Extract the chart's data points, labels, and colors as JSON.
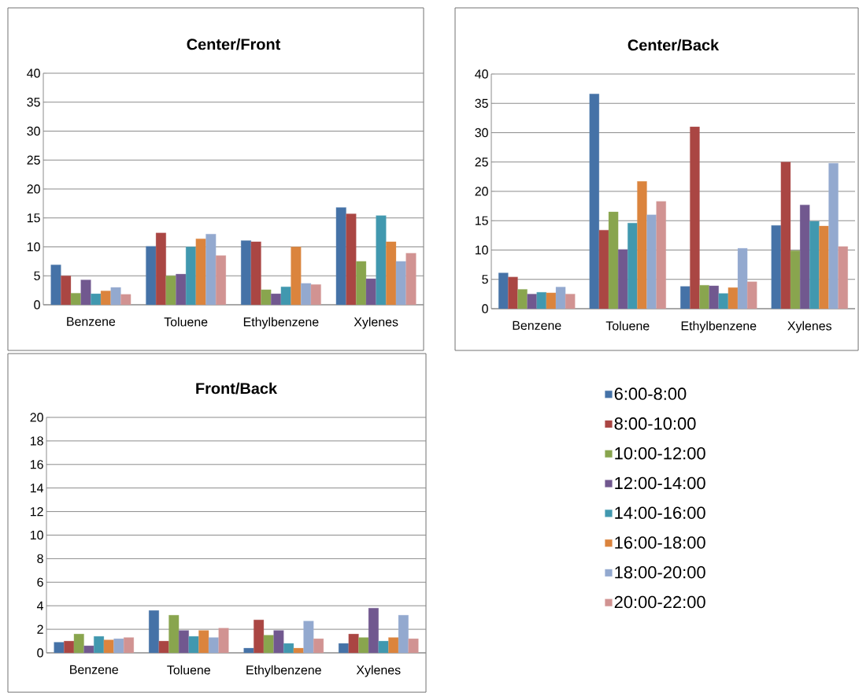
{
  "chart_data": [
    {
      "type": "bar",
      "title": "Center/Front",
      "categories": [
        "Benzene",
        "Toluene",
        "Ethylbenzene",
        "Xylenes"
      ],
      "ylim": [
        0,
        40
      ],
      "yticks": [
        0,
        5,
        10,
        15,
        20,
        25,
        30,
        35,
        40
      ],
      "grid": "y",
      "series": [
        {
          "color": "#4572a7",
          "values": [
            6.9,
            10.1,
            11.1,
            16.8
          ]
        },
        {
          "color": "#aa4643",
          "values": [
            5.0,
            12.4,
            10.9,
            15.7
          ]
        },
        {
          "color": "#89a54e",
          "values": [
            2.0,
            5.0,
            2.6,
            7.5
          ]
        },
        {
          "color": "#71588f",
          "values": [
            4.3,
            5.3,
            1.9,
            4.5
          ]
        },
        {
          "color": "#4198af",
          "values": [
            1.9,
            10.0,
            3.1,
            15.4
          ]
        },
        {
          "color": "#db843d",
          "values": [
            2.4,
            11.4,
            10.0,
            10.9
          ]
        },
        {
          "color": "#93a9cf",
          "values": [
            3.0,
            12.2,
            3.7,
            7.5
          ]
        },
        {
          "color": "#d19392",
          "values": [
            1.8,
            8.5,
            3.5,
            8.9
          ]
        }
      ]
    },
    {
      "type": "bar",
      "title": "Center/Back",
      "categories": [
        "Benzene",
        "Toluene",
        "Ethylbenzene",
        "Xylenes"
      ],
      "ylim": [
        0,
        40
      ],
      "yticks": [
        0,
        5,
        10,
        15,
        20,
        25,
        30,
        35,
        40
      ],
      "grid": "y",
      "series": [
        {
          "color": "#4572a7",
          "values": [
            6.1,
            36.6,
            3.8,
            14.2
          ]
        },
        {
          "color": "#aa4643",
          "values": [
            5.4,
            13.4,
            31.0,
            25.0
          ]
        },
        {
          "color": "#89a54e",
          "values": [
            3.3,
            16.5,
            4.0,
            9.9
          ]
        },
        {
          "color": "#71588f",
          "values": [
            2.5,
            10.1,
            3.9,
            17.7
          ]
        },
        {
          "color": "#4198af",
          "values": [
            2.8,
            14.6,
            2.6,
            14.9
          ]
        },
        {
          "color": "#db843d",
          "values": [
            2.7,
            21.7,
            3.6,
            14.1
          ]
        },
        {
          "color": "#93a9cf",
          "values": [
            3.7,
            16.0,
            10.3,
            24.8
          ]
        },
        {
          "color": "#d19392",
          "values": [
            2.5,
            18.3,
            4.6,
            10.6
          ]
        }
      ]
    },
    {
      "type": "bar",
      "title": "Front/Back",
      "categories": [
        "Benzene",
        "Toluene",
        "Ethylbenzene",
        "Xylenes"
      ],
      "ylim": [
        0,
        20
      ],
      "yticks": [
        0,
        2,
        4,
        6,
        8,
        10,
        12,
        14,
        16,
        18,
        20
      ],
      "grid": "y",
      "legend": "right",
      "series": [
        {
          "name": "6:00-8:00",
          "color": "#4572a7",
          "values": [
            0.9,
            3.6,
            0.4,
            0.8
          ]
        },
        {
          "name": "8:00-10:00",
          "color": "#aa4643",
          "values": [
            1.0,
            1.0,
            2.8,
            1.6
          ]
        },
        {
          "name": "10:00-12:00",
          "color": "#89a54e",
          "values": [
            1.6,
            3.2,
            1.5,
            1.3
          ]
        },
        {
          "name": "12:00-14:00",
          "color": "#71588f",
          "values": [
            0.6,
            1.9,
            1.9,
            3.8
          ]
        },
        {
          "name": "14:00-16:00",
          "color": "#4198af",
          "values": [
            1.4,
            1.4,
            0.8,
            1.0
          ]
        },
        {
          "name": "16:00-18:00",
          "color": "#db843d",
          "values": [
            1.1,
            1.9,
            0.4,
            1.3
          ]
        },
        {
          "name": "18:00-20:00",
          "color": "#93a9cf",
          "values": [
            1.2,
            1.3,
            2.7,
            3.2
          ]
        },
        {
          "name": "20:00-22:00",
          "color": "#d19392",
          "values": [
            1.3,
            2.1,
            1.2,
            1.2
          ]
        }
      ]
    }
  ]
}
